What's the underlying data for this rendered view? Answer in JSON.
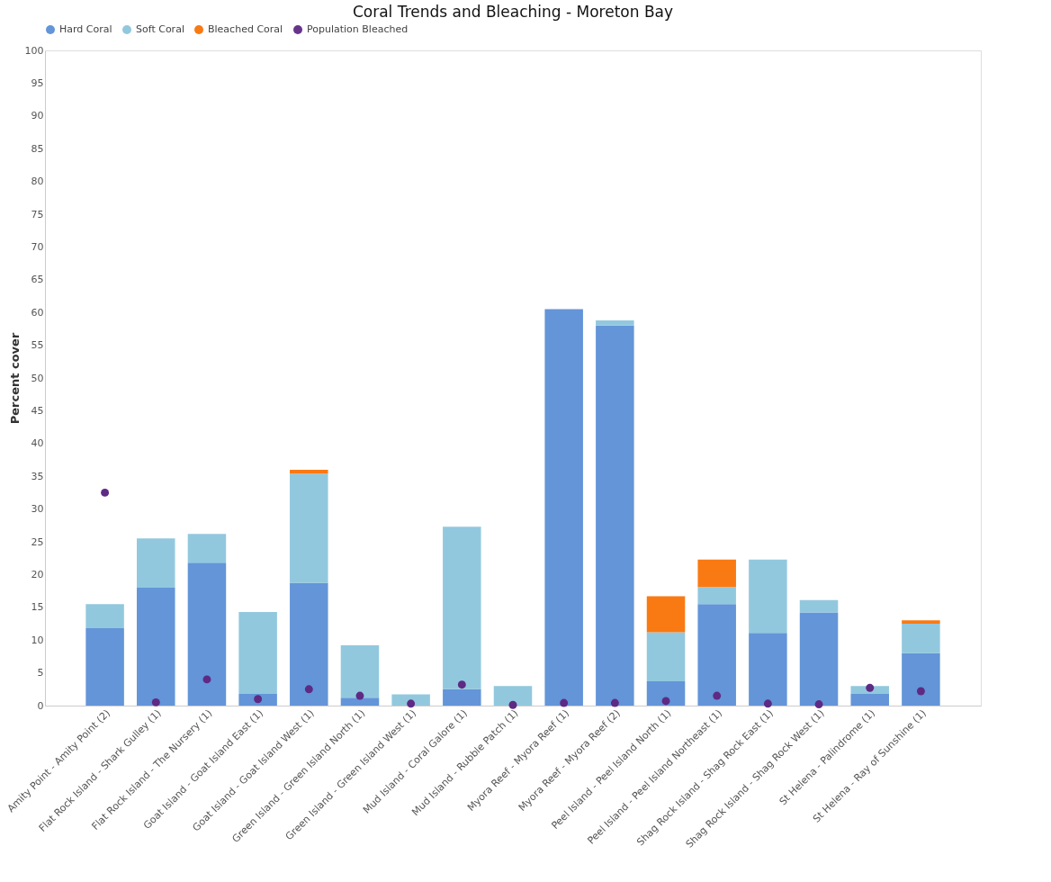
{
  "chart_data": {
    "type": "bar",
    "title": "Coral Trends and Bleaching - Moreton Bay",
    "ylabel": "Percent cover",
    "stacked": true,
    "legend": "top",
    "grid": false,
    "categories": [
      "Amity Point - Amity Point (2)",
      "Flat Rock Island - Shark Gulley (1)",
      "Flat Rock Island - The Nursery (1)",
      "Goat Island - Goat Island East (1)",
      "Goat Island - Goat Island West (1)",
      "Green Island - Green Island North (1)",
      "Green Island - Green Island West (1)",
      "Mud Island - Coral Galore (1)",
      "Mud Island - Rubble Patch (1)",
      "Myora Reef - Myora Reef (1)",
      "Myora Reef - Myora Reef (2)",
      "Peel Island - Peel Island North (1)",
      "Peel Island - Peel Island Northeast (1)",
      "Shag Rock Island - Shag Rock East (1)",
      "Shag Rock Island - Shag Rock West (1)",
      "St Helena - Palindrome (1)",
      "St Helena - Ray of Sunshine (1)"
    ],
    "ylim": [
      0,
      100
    ],
    "yticks": [
      0,
      5,
      10,
      15,
      20,
      25,
      30,
      35,
      40,
      45,
      50,
      55,
      60,
      65,
      70,
      75,
      80,
      85,
      90,
      95,
      100
    ],
    "series": [
      {
        "name": "Hard Coral",
        "color": "#5b8fd6",
        "values": [
          11.8,
          18.0,
          21.8,
          1.8,
          18.7,
          1.2,
          0,
          2.5,
          0,
          60.5,
          58.0,
          3.7,
          15.5,
          11.1,
          14.2,
          1.8,
          8.0
        ]
      },
      {
        "name": "Soft Coral",
        "color": "#8cc5dc",
        "values": [
          3.7,
          7.5,
          4.4,
          12.5,
          16.7,
          8.0,
          1.7,
          24.8,
          3.0,
          0,
          0.8,
          7.5,
          2.6,
          11.2,
          1.9,
          1.2,
          4.5
        ]
      },
      {
        "name": "Bleached Coral",
        "color": "#f97306",
        "values": [
          0,
          0,
          0,
          0,
          0.6,
          0,
          0,
          0,
          0,
          0,
          0,
          5.5,
          4.2,
          0,
          0,
          0,
          0.5
        ]
      },
      {
        "name": "Population Bleached",
        "type": "scatter",
        "marker": "circle",
        "color": "#5e2a84",
        "values": [
          32.5,
          0.5,
          4.0,
          1.0,
          2.5,
          1.5,
          0.3,
          3.2,
          0.1,
          0.4,
          0.4,
          0.7,
          1.5,
          0.3,
          0.2,
          2.7,
          2.2
        ]
      }
    ]
  }
}
